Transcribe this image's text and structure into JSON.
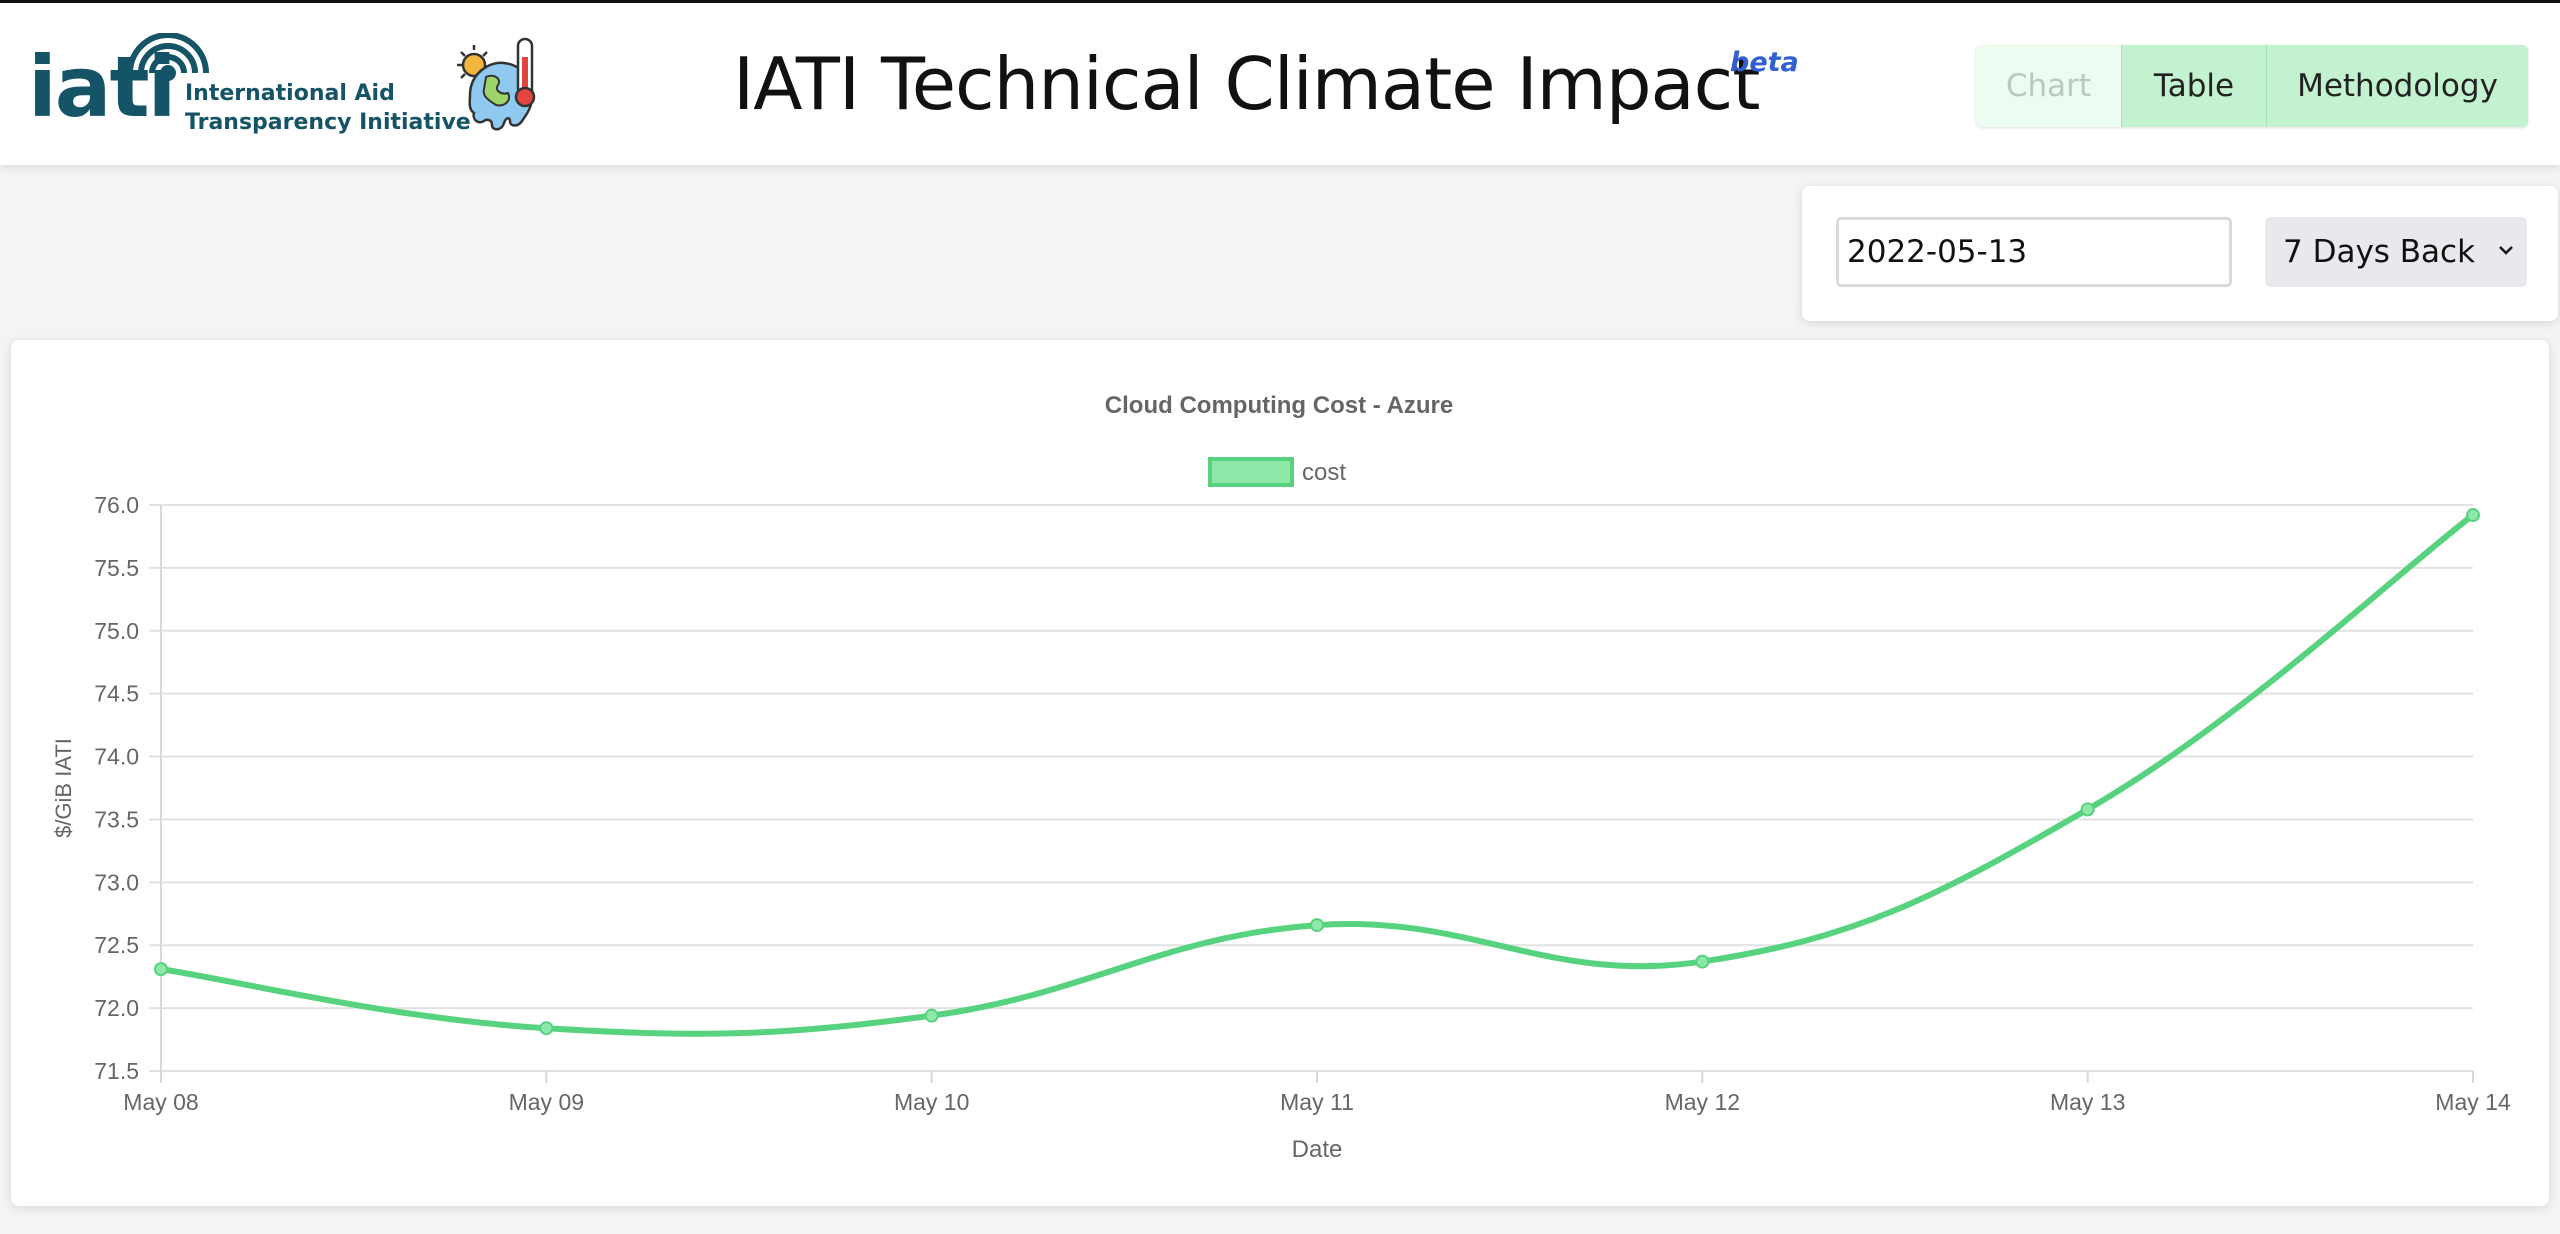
{
  "header": {
    "logo_word": "iati",
    "org_line1": "International Aid",
    "org_line2": "Transparency Initiative",
    "title": "IATI Technical Climate Impact",
    "badge": "beta",
    "nav": [
      {
        "label": "Chart",
        "active": true
      },
      {
        "label": "Table",
        "active": false
      },
      {
        "label": "Methodology",
        "active": false
      }
    ]
  },
  "controls": {
    "date_value": "2022-05-13",
    "range_selected": "7 Days Back"
  },
  "icons": {
    "logo_arcs": "signal-arcs-icon",
    "earth": "melting-earth-thermometer-icon",
    "dropdown": "chevron-down-icon"
  },
  "colors": {
    "brand": "#155366",
    "series": "#57d37f",
    "nav_bg": "#c2f2cf",
    "beta": "#2f5fd0"
  },
  "chart_data": {
    "type": "line",
    "title": "Cloud Computing Cost - Azure",
    "xlabel": "Date",
    "ylabel": "$/GiB IATI",
    "categories": [
      "May 08",
      "May 09",
      "May 10",
      "May 11",
      "May 12",
      "May 13",
      "May 14"
    ],
    "series": [
      {
        "name": "cost",
        "values": [
          72.31,
          71.84,
          71.94,
          72.66,
          72.37,
          73.58,
          75.92
        ]
      }
    ],
    "ylim": [
      71.5,
      76.0
    ],
    "yticks": [
      "76.0",
      "75.5",
      "75.0",
      "74.5",
      "74.0",
      "73.5",
      "73.0",
      "72.5",
      "72.0",
      "71.5"
    ],
    "grid": true,
    "legend": "top-center",
    "curve": "smooth"
  }
}
